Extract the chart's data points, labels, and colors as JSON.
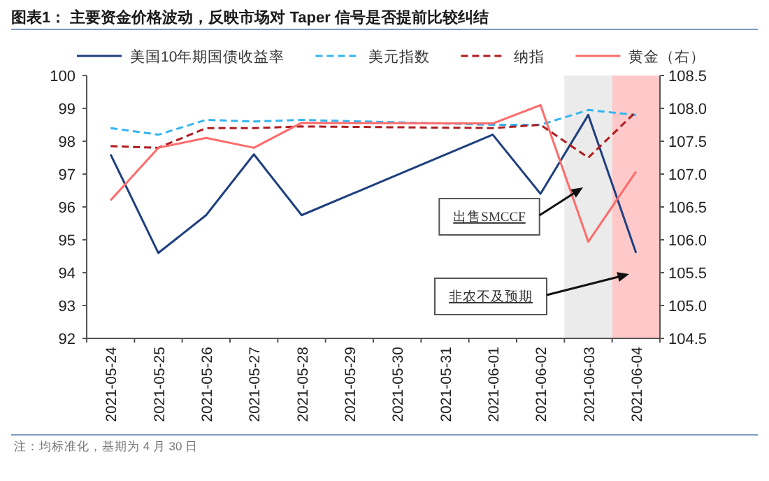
{
  "chart_data": {
    "type": "line",
    "title": "图表1：  主要资金价格波动，反映市场对 Taper 信号是否提前比较纠结",
    "categories": [
      "2021-05-24",
      "2021-05-25",
      "2021-05-26",
      "2021-05-27",
      "2021-05-28",
      "2021-05-29",
      "2021-05-30",
      "2021-05-31",
      "2021-06-01",
      "2021-06-02",
      "2021-06-03",
      "2021-06-04"
    ],
    "series": [
      {
        "name": "美国10年期国债收益率",
        "color": "#1f3f7f",
        "line_style": "solid",
        "values": [
          97.6,
          94.6,
          95.75,
          97.6,
          95.75,
          null,
          null,
          null,
          98.2,
          96.4,
          98.8,
          94.6
        ]
      },
      {
        "name": "美元指数",
        "color": "#33b5f0",
        "line_style": "dashed",
        "values": [
          98.4,
          98.2,
          98.65,
          98.6,
          98.65,
          null,
          null,
          null,
          98.5,
          98.5,
          98.95,
          98.8
        ]
      },
      {
        "name": "纳指",
        "color": "#b01c20",
        "line_style": "dashed",
        "values": [
          97.85,
          97.8,
          98.4,
          98.4,
          98.45,
          null,
          null,
          null,
          98.4,
          98.5,
          97.5,
          98.9
        ]
      },
      {
        "name": "黄金（右）",
        "color": "#ff6b6b",
        "line_style": "solid",
        "axis": "y2",
        "values": [
          106.6,
          107.4,
          107.55,
          107.4,
          107.78,
          null,
          null,
          null,
          107.77,
          108.05,
          105.97,
          107.04
        ]
      }
    ],
    "ylim": [
      92,
      100
    ],
    "yticks": [
      92,
      93,
      94,
      95,
      96,
      97,
      98,
      99,
      100
    ],
    "y2lim": [
      104.5,
      108.5
    ],
    "y2ticks": [
      104.5,
      {
        "value": 105,
        "label": "105.0"
      },
      105.5,
      {
        "value": 106,
        "label": "106.0"
      },
      106.5,
      {
        "value": 107,
        "label": "107.0"
      },
      107.5,
      {
        "value": 108,
        "label": "108.0"
      },
      108.5
    ],
    "bands": [
      {
        "axis": "x",
        "from": "2021-06-03",
        "to": "2021-06-03",
        "color": "#ebebeb"
      },
      {
        "axis": "x",
        "from": "2021-06-04",
        "to": "2021-06-04",
        "color": "#ffc9c9"
      }
    ],
    "annotations": [
      "出售SMCCF",
      "非农不及预期",
      "注：均标准化，基期为 4 月 30 日"
    ],
    "legend": "top",
    "grid": false
  }
}
